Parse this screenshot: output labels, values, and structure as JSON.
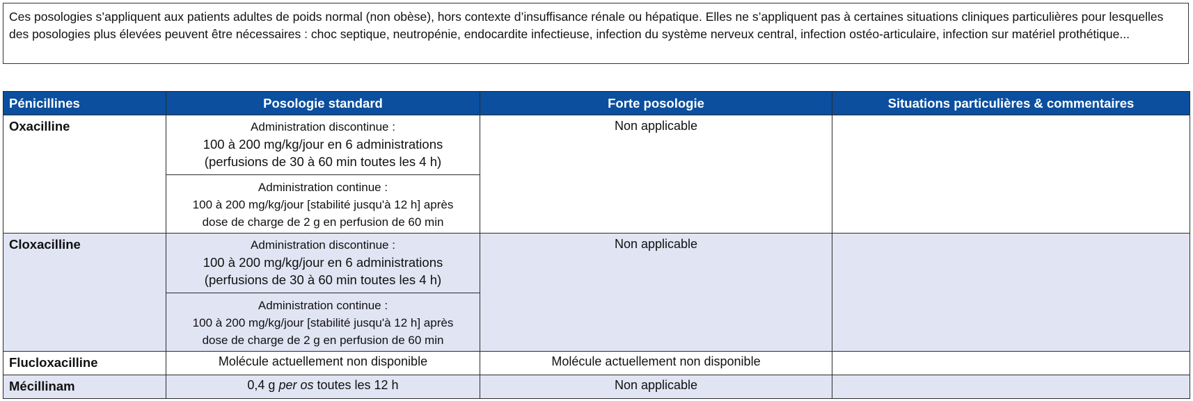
{
  "note": "Ces posologies s’appliquent aux patients adultes de poids normal (non obèse), hors contexte d’insuffisance rénale ou hépatique. Elles ne s’appliquent pas à certaines situations cliniques particulières pour lesquelles des posologies plus élevées peuvent être nécessaires : choc septique, neutropénie, endocardite infectieuse, infection du système nerveux central, infection ostéo-articulaire, infection sur matériel prothétique...",
  "table": {
    "headers": [
      "Pénicillines",
      "Posologie standard",
      "Forte posologie",
      "Situations particulières & commentaires"
    ],
    "colors": {
      "header_bg": "#0b4f9e",
      "shaded_row": "#e1e4f3"
    },
    "rows": [
      {
        "name": "Oxacilline",
        "discontinuous": {
          "title": "Administration discontinue :",
          "line1": "100 à 200 mg/kg/jour en 6 administrations",
          "line2": "(perfusions de 30 à 60 min toutes les 4 h)"
        },
        "continuous": {
          "title": "Administration continue :",
          "line1": "100 à 200 mg/kg/jour [stabilité jusqu'à 12 h] après",
          "line2": "dose de charge de 2 g en perfusion de 60 min"
        },
        "high_dose": "Non applicable",
        "comments": ""
      },
      {
        "name": "Cloxacilline",
        "discontinuous": {
          "title": "Administration discontinue :",
          "line1": "100 à 200 mg/kg/jour en 6 administrations",
          "line2": "(perfusions de 30 à 60 min toutes les 4 h)"
        },
        "continuous": {
          "title": "Administration continue :",
          "line1": "100 à 200 mg/kg/jour [stabilité jusqu'à 12 h] après",
          "line2": "dose de charge de 2 g en perfusion de 60 min"
        },
        "high_dose": "Non applicable",
        "comments": ""
      },
      {
        "name": "Flucloxacilline",
        "standard": "Molécule actuellement non disponible",
        "high_dose": "Molécule actuellement non disponible",
        "comments": ""
      },
      {
        "name": "Mécillinam",
        "standard_pre": "0,4 g ",
        "standard_em": "per os",
        "standard_post": " toutes les 12 h",
        "high_dose": "Non applicable",
        "comments": ""
      }
    ]
  }
}
